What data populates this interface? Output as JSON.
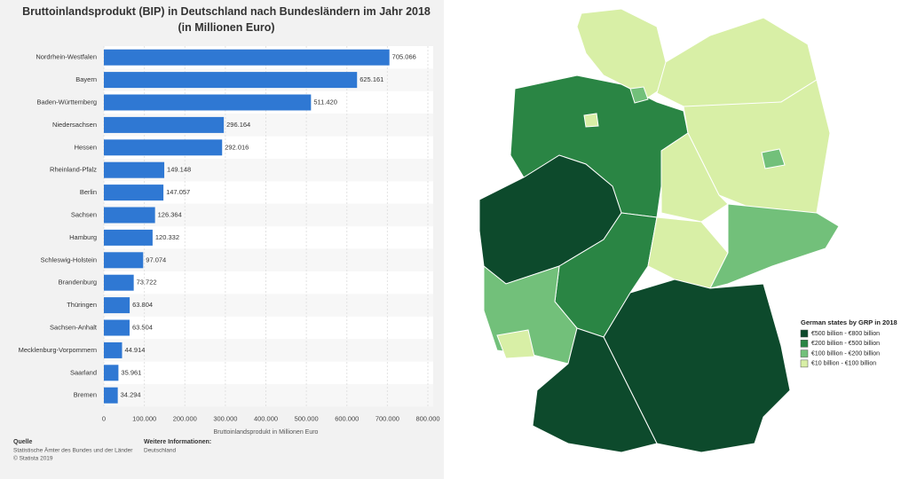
{
  "chart_data": [
    {
      "type": "bar",
      "orientation": "horizontal",
      "title": "Bruttoinlandsprodukt (BIP) in Deutschland nach Bundesländern im Jahr 2018 (in Millionen Euro)",
      "x_label": "Bruttoinlandsprodukt in Millionen Euro",
      "categories": [
        "Nordrhein-Westfalen",
        "Bayern",
        "Baden-Württemberg",
        "Niedersachsen",
        "Hessen",
        "Rheinland-Pfalz",
        "Berlin",
        "Sachsen",
        "Hamburg",
        "Schleswig-Holstein",
        "Brandenburg",
        "Thüringen",
        "Sachsen-Anhalt",
        "Mecklenburg-Vorpommern",
        "Saarland",
        "Bremen"
      ],
      "values": [
        705066,
        625161,
        511420,
        296164,
        292016,
        149148,
        147057,
        126364,
        120332,
        97074,
        73722,
        63804,
        63504,
        44914,
        35961,
        34294
      ],
      "value_labels": [
        "705.066",
        "625.161",
        "511.420",
        "296.164",
        "292.016",
        "149.148",
        "147.057",
        "126.364",
        "120.332",
        "97.074",
        "73.722",
        "63.804",
        "63.504",
        "44.914",
        "35.961",
        "34.294"
      ],
      "color": "#2f78d3",
      "xlim": [
        0,
        800000
      ],
      "xticks": [
        0,
        {
          "value": 100000,
          "label": "100.000"
        },
        {
          "value": 200000,
          "label": "200.000"
        },
        {
          "value": 300000,
          "label": "300.000"
        },
        {
          "value": 400000,
          "label": "400.000"
        },
        {
          "value": 500000,
          "label": "500.000"
        },
        {
          "value": 600000,
          "label": "600.000"
        },
        {
          "value": 700000,
          "label": "700.000"
        },
        {
          "value": 800000,
          "label": "800.000"
        }
      ]
    },
    {
      "type": "map",
      "title": "German states by GRP in 2018",
      "classes": [
        {
          "name": "€500 billion - €800 billion",
          "color": "#0d4a2c"
        },
        {
          "name": "€200 billion - €500 billion",
          "color": "#2a8544"
        },
        {
          "name": "€100 billion - €200 billion",
          "color": "#72c07a"
        },
        {
          "name": "€10 billion - €100 billion",
          "color": "#d8efa6"
        }
      ]
    }
  ],
  "footer": {
    "source_label": "Quelle",
    "source": "Statistische Ämter des Bundes und der Länder",
    "copyright": "© Statista 2019",
    "info_label": "Weitere Informationen:",
    "info": "Deutschland"
  }
}
